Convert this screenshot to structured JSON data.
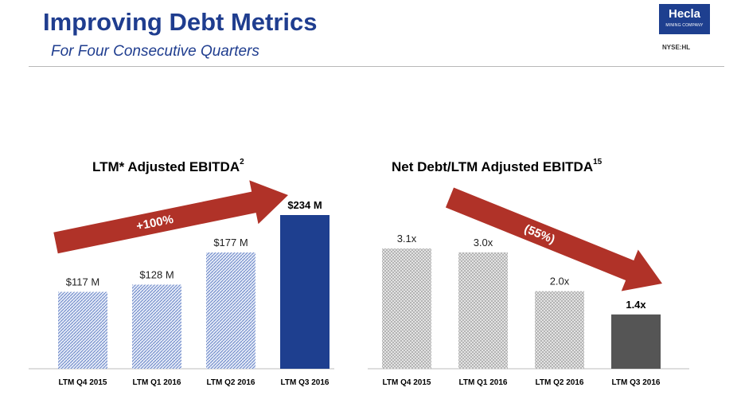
{
  "header": {
    "title": "Improving Debt Metrics",
    "subtitle": "For Four Consecutive Quarters",
    "logo_name": "Hecla",
    "logo_sub": "MINING COMPANY",
    "ticker": "NYSE:HL"
  },
  "chart_data": [
    {
      "type": "bar",
      "title": "LTM* Adjusted EBITDA",
      "title_sup": "2",
      "categories": [
        "LTM Q4 2015",
        "LTM Q1 2016",
        "LTM Q2 2016",
        "LTM Q3 2016"
      ],
      "values": [
        117,
        128,
        177,
        234
      ],
      "data_labels": [
        "$117 M",
        "$128 M",
        "$177 M",
        "$234 M"
      ],
      "ylim": [
        0,
        234
      ],
      "annotation": "+100%",
      "colors": {
        "hatched": "#5b79c2",
        "highlight": "#1e3f8f",
        "arrow": "#b03228"
      }
    },
    {
      "type": "bar",
      "title": "Net Debt/LTM Adjusted EBITDA",
      "title_sup": "15",
      "categories": [
        "LTM Q4 2015",
        "LTM Q1 2016",
        "LTM Q2 2016",
        "LTM Q3 2016"
      ],
      "values": [
        3.1,
        3.0,
        2.0,
        1.4
      ],
      "data_labels": [
        "3.1x",
        "3.0x",
        "2.0x",
        "1.4x"
      ],
      "ylim": [
        0,
        3.1
      ],
      "annotation": "(55%)",
      "colors": {
        "hatched": "#9a9a9a",
        "highlight": "#555555",
        "arrow": "#b03228"
      }
    }
  ]
}
